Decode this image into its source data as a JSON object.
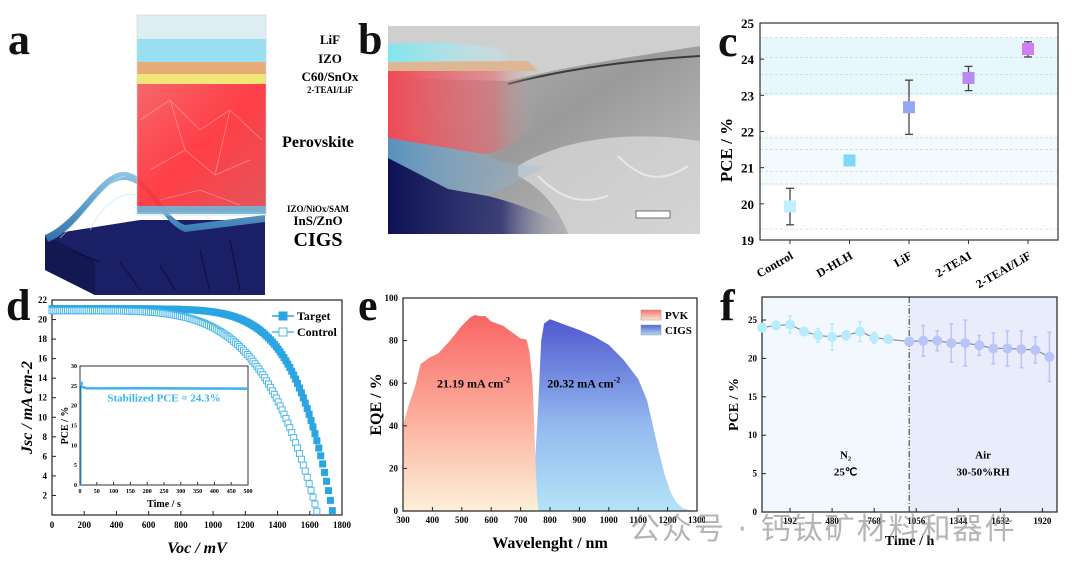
{
  "figure": {
    "panel_letters": [
      "a",
      "b",
      "c",
      "d",
      "e",
      "f"
    ],
    "watermark": "公众号 · 钙钛矿材料和器件"
  },
  "panel_a": {
    "type": "schematic",
    "layer_labels": [
      "LiF",
      "IZO",
      "C60/SnOx",
      "2-TEAI/LiF",
      "Perovskite",
      "IZO/NiOx/SAM",
      "InS/ZnO",
      "CIGS"
    ],
    "layer_colors": {
      "LiF": "#dcecf0",
      "IZO": "#8fdcef",
      "C60/SnOx": "#e9a56a",
      "2-TEAI/LiF": "#f3e26a",
      "Perovskite": "#ef3f46",
      "IZO/NiOx/SAM": "#6fb6d8",
      "CIGS": "#1c2166"
    }
  },
  "panel_b": {
    "type": "sem-image",
    "description": "false-colored cross-section SEM",
    "scale_bar": true
  },
  "chart_data": [
    {
      "id": "c",
      "type": "scatter",
      "title": "",
      "xlabel": "",
      "ylabel": "PCE / %",
      "ylim": [
        19,
        25
      ],
      "yticks": [
        19,
        20,
        21,
        22,
        23,
        24,
        25
      ],
      "categories": [
        "Control",
        "D-HLH",
        "LiF",
        "2-TEAI",
        "2-TEAI/LiF"
      ],
      "values": [
        19.93,
        21.2,
        22.67,
        23.48,
        24.28
      ],
      "err_low": [
        19.42,
        21.2,
        21.92,
        23.13,
        24.06
      ],
      "err_high": [
        20.43,
        21.2,
        23.42,
        23.8,
        24.48
      ],
      "colors": [
        "#bff0fb",
        "#7fd8f6",
        "#93a7f2",
        "#b98af0",
        "#d47cf2"
      ],
      "highlight_band": [
        23.0,
        24.6
      ],
      "dashed_gridlines": [
        19.3,
        20.55,
        20.9,
        21.5,
        21.82,
        23.05,
        23.58,
        24.05,
        24.6
      ],
      "grid": true
    },
    {
      "id": "d",
      "type": "line",
      "xlabel": "Voc / mV",
      "ylabel": "Jsc / mA cm-2",
      "xlim": [
        0,
        1800
      ],
      "ylim": [
        0,
        22
      ],
      "xticks": [
        0,
        200,
        400,
        600,
        800,
        1000,
        1200,
        1400,
        1600,
        1800
      ],
      "yticks": [
        2,
        4,
        6,
        8,
        10,
        12,
        14,
        16,
        18,
        20,
        22
      ],
      "legend": "top-right",
      "series": [
        {
          "name": "Target",
          "marker": "filled-square",
          "color": "#2aa5e3",
          "jsc": 21.1,
          "voc": 1745,
          "knee": 1250,
          "shape": 7.5
        },
        {
          "name": "Control",
          "marker": "open-square",
          "color": "#4db8ea",
          "jsc": 20.9,
          "voc": 1650,
          "knee": 1000,
          "shape": 5.0
        }
      ],
      "inset": {
        "xlabel": "Time / s",
        "ylabel": "PCE / %",
        "xlim": [
          0,
          500
        ],
        "ylim": [
          0,
          30
        ],
        "xticks": [
          0,
          50,
          100,
          150,
          200,
          250,
          300,
          350,
          400,
          450,
          500
        ],
        "yticks": [
          0,
          5,
          10,
          15,
          20,
          25,
          30
        ],
        "annotation": "Stabilized PCE = 24.3%",
        "stabilized_value": 24.3,
        "initial_value": 25.6,
        "color": "#3bb2ef"
      }
    },
    {
      "id": "e",
      "type": "area",
      "xlabel": "Wavelenght / nm",
      "ylabel": "EQE / %",
      "xlim": [
        300,
        1300
      ],
      "ylim": [
        0,
        100
      ],
      "xticks": [
        300,
        400,
        500,
        600,
        700,
        800,
        900,
        1000,
        1100,
        1200,
        1300
      ],
      "yticks": [
        0,
        20,
        40,
        60,
        80,
        100
      ],
      "legend": "top-right",
      "series": [
        {
          "name": "PVK",
          "annotation": "21.19 mA cm-2",
          "x": [
            300,
            320,
            340,
            360,
            370,
            390,
            420,
            460,
            500,
            530,
            545,
            560,
            580,
            600,
            640,
            680,
            700,
            720,
            730,
            740,
            745,
            750,
            755,
            760
          ],
          "y": [
            40,
            50,
            58,
            69,
            70,
            72,
            74,
            80,
            87,
            91,
            92,
            91.5,
            91.5,
            89,
            87,
            83,
            81,
            80.5,
            75,
            62,
            45,
            25,
            10,
            0
          ]
        },
        {
          "name": "CIGS",
          "annotation": "20.32 mA cm-2",
          "x": [
            300,
            340,
            360,
            370,
            420,
            500,
            560,
            600,
            640,
            680,
            720,
            740,
            750,
            760,
            770,
            780,
            800,
            820,
            860,
            900,
            950,
            1000,
            1050,
            1100,
            1130,
            1150,
            1170,
            1190,
            1210,
            1230,
            1250,
            1270,
            1290
          ],
          "y": [
            3,
            4,
            5,
            6,
            6.5,
            8,
            9,
            10,
            13,
            16,
            19,
            21,
            25,
            50,
            80,
            88,
            90,
            89,
            87,
            85,
            82,
            78,
            71,
            62,
            52,
            40,
            28,
            17,
            9,
            4,
            1.5,
            0.5,
            0
          ]
        }
      ],
      "legend_colors": {
        "PVK": [
          "#f57070",
          "#fde7cf"
        ],
        "CIGS": [
          "#5b63d6",
          "#a9dcf4"
        ]
      }
    },
    {
      "id": "f",
      "type": "line",
      "xlabel": "Time / h",
      "ylabel": "PCE / %",
      "xlim": [
        0,
        2020
      ],
      "ylim": [
        0,
        28
      ],
      "xticks": [
        192,
        480,
        768,
        1056,
        1344,
        1632,
        1920
      ],
      "yticks": [
        0,
        5,
        10,
        15,
        20,
        25
      ],
      "divider_x": 1008,
      "region_labels": [
        {
          "line1": "N₂",
          "line2": "25℃"
        },
        {
          "line1": "Air",
          "line2": "30-50%RH"
        }
      ],
      "series": [
        {
          "name": "N2",
          "color": "#b6ecfb",
          "x": [
            0,
            96,
            192,
            288,
            384,
            480,
            576,
            672,
            768,
            864,
            1008
          ],
          "y": [
            24.0,
            24.3,
            24.4,
            23.5,
            23.0,
            22.8,
            23.0,
            23.5,
            22.7,
            22.5,
            22.2
          ],
          "err": [
            0.1,
            0.4,
            1.1,
            0.5,
            0.9,
            1.7,
            0.6,
            1.3,
            0.7,
            0.1,
            0.1
          ]
        },
        {
          "name": "Air",
          "color": "#b9c4f7",
          "x": [
            1008,
            1104,
            1200,
            1296,
            1392,
            1488,
            1584,
            1680,
            1776,
            1872,
            1968
          ],
          "y": [
            22.2,
            22.3,
            22.3,
            22.0,
            22.0,
            21.7,
            21.3,
            21.3,
            21.2,
            21.1,
            20.2
          ],
          "err": [
            0.1,
            2.0,
            1.3,
            2.5,
            3.0,
            1.3,
            2.0,
            2.3,
            2.4,
            1.7,
            3.2
          ]
        }
      ]
    }
  ]
}
